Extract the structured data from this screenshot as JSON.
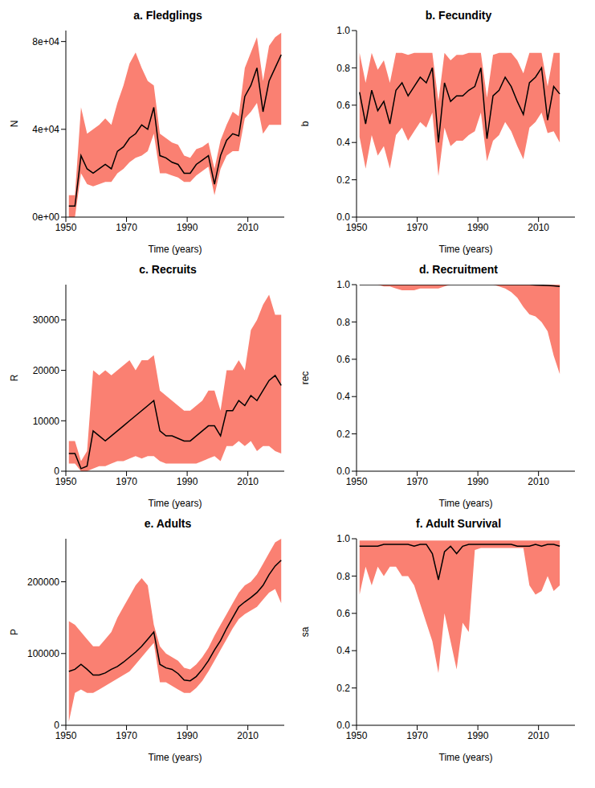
{
  "chart_data": [
    {
      "type": "line",
      "title": "a. Fledglings",
      "x_label": "Time (years)",
      "y_label": "N",
      "x": [
        1951,
        1953,
        1955,
        1957,
        1959,
        1961,
        1963,
        1965,
        1967,
        1969,
        1971,
        1973,
        1975,
        1977,
        1979,
        1981,
        1983,
        1985,
        1987,
        1989,
        1991,
        1993,
        1995,
        1997,
        1999,
        2001,
        2003,
        2005,
        2007,
        2009,
        2011,
        2013,
        2015,
        2017,
        2019,
        2021
      ],
      "xlim": [
        1950,
        2022
      ],
      "xticks": [
        1950,
        1970,
        1990,
        2010
      ],
      "ylim": [
        0,
        85000
      ],
      "yticks": [
        {
          "value": 0,
          "label": "0e+00"
        },
        {
          "value": 40000,
          "label": "4e+04"
        },
        {
          "value": 80000,
          "label": "8e+04"
        }
      ],
      "series": [
        {
          "type": "area",
          "color": "#fa8072",
          "lower": [
            0,
            0,
            20000,
            15000,
            14000,
            15000,
            16000,
            16000,
            20000,
            22000,
            25000,
            27000,
            28000,
            30000,
            38000,
            20000,
            20000,
            19000,
            18000,
            16000,
            16000,
            19000,
            21000,
            23000,
            10000,
            22000,
            28000,
            30000,
            30000,
            45000,
            48000,
            52000,
            38000,
            42000,
            42000,
            42000
          ],
          "upper": [
            10000,
            10000,
            50000,
            38000,
            40000,
            42000,
            45000,
            42000,
            52000,
            60000,
            70000,
            75000,
            68000,
            62000,
            60000,
            38000,
            36000,
            34000,
            33000,
            28000,
            27000,
            31000,
            32000,
            34000,
            22000,
            35000,
            42000,
            48000,
            46000,
            68000,
            75000,
            82000,
            62000,
            78000,
            82000,
            84000
          ]
        },
        {
          "type": "line",
          "color": "#000000",
          "values": [
            5000,
            5000,
            28000,
            22000,
            20000,
            22000,
            24000,
            22000,
            30000,
            32000,
            36000,
            38000,
            42000,
            40000,
            50000,
            28000,
            27000,
            25000,
            24000,
            20000,
            20000,
            24000,
            26000,
            28000,
            15000,
            28000,
            35000,
            38000,
            37000,
            55000,
            60000,
            68000,
            48000,
            62000,
            68000,
            74000
          ]
        }
      ]
    },
    {
      "type": "line",
      "title": "b. Fecundity",
      "x_label": "Time (years)",
      "y_label": "b",
      "x": [
        1951,
        1953,
        1955,
        1957,
        1959,
        1961,
        1963,
        1965,
        1967,
        1969,
        1971,
        1973,
        1975,
        1977,
        1979,
        1981,
        1983,
        1985,
        1987,
        1989,
        1991,
        1993,
        1995,
        1997,
        1999,
        2001,
        2003,
        2005,
        2007,
        2009,
        2011,
        2013,
        2015,
        2017
      ],
      "xlim": [
        1950,
        2022
      ],
      "xticks": [
        1950,
        1970,
        1990,
        2010
      ],
      "ylim": [
        0,
        1
      ],
      "yticks": [
        {
          "value": 0,
          "label": "0.0"
        },
        0.2,
        0.4,
        0.6,
        0.8,
        {
          "value": 1,
          "label": "1.0"
        }
      ],
      "series": [
        {
          "type": "area",
          "color": "#fa8072",
          "lower": [
            0.43,
            0.26,
            0.44,
            0.33,
            0.38,
            0.26,
            0.44,
            0.48,
            0.41,
            0.46,
            0.51,
            0.48,
            0.56,
            0.22,
            0.48,
            0.38,
            0.41,
            0.41,
            0.44,
            0.46,
            0.56,
            0.3,
            0.41,
            0.44,
            0.51,
            0.46,
            0.38,
            0.31,
            0.48,
            0.51,
            0.56,
            0.45,
            0.46,
            0.4
          ],
          "upper": [
            0.88,
            0.72,
            0.88,
            0.79,
            0.84,
            0.72,
            0.88,
            0.88,
            0.87,
            0.88,
            0.88,
            0.88,
            0.88,
            0.62,
            0.88,
            0.84,
            0.87,
            0.87,
            0.88,
            0.88,
            0.88,
            0.64,
            0.87,
            0.88,
            0.88,
            0.88,
            0.84,
            0.77,
            0.88,
            0.88,
            0.88,
            0.7,
            0.88,
            0.88
          ]
        },
        {
          "type": "line",
          "color": "#000000",
          "values": [
            0.67,
            0.5,
            0.68,
            0.57,
            0.62,
            0.5,
            0.68,
            0.72,
            0.65,
            0.7,
            0.75,
            0.72,
            0.8,
            0.4,
            0.72,
            0.62,
            0.65,
            0.65,
            0.68,
            0.7,
            0.8,
            0.42,
            0.65,
            0.68,
            0.75,
            0.7,
            0.62,
            0.55,
            0.72,
            0.75,
            0.8,
            0.52,
            0.7,
            0.66
          ]
        }
      ]
    },
    {
      "type": "line",
      "title": "c. Recruits",
      "x_label": "Time (years)",
      "y_label": "R",
      "x": [
        1951,
        1953,
        1955,
        1957,
        1959,
        1961,
        1963,
        1965,
        1967,
        1969,
        1971,
        1973,
        1975,
        1977,
        1979,
        1981,
        1983,
        1985,
        1987,
        1989,
        1991,
        1993,
        1995,
        1997,
        1999,
        2001,
        2003,
        2005,
        2007,
        2009,
        2011,
        2013,
        2015,
        2017,
        2019,
        2021
      ],
      "xlim": [
        1950,
        2022
      ],
      "xticks": [
        1950,
        1970,
        1990,
        2010
      ],
      "ylim": [
        0,
        37000
      ],
      "yticks": [
        0,
        10000,
        20000,
        30000
      ],
      "series": [
        {
          "type": "area",
          "color": "#fa8072",
          "lower": [
            1500,
            1500,
            0,
            0,
            500,
            1000,
            1000,
            1500,
            2000,
            2000,
            2500,
            3000,
            2500,
            3000,
            3000,
            2000,
            1500,
            1500,
            1500,
            1500,
            1500,
            1500,
            2000,
            2500,
            3000,
            2000,
            5000,
            5000,
            6000,
            5000,
            6000,
            4000,
            5000,
            5000,
            4000,
            3500
          ],
          "upper": [
            6000,
            6000,
            2000,
            4000,
            20000,
            19000,
            20000,
            19000,
            20000,
            21000,
            22000,
            20000,
            22000,
            22000,
            23000,
            16000,
            15000,
            14000,
            13000,
            12000,
            12000,
            13000,
            14000,
            16000,
            16000,
            12000,
            20000,
            20000,
            22000,
            20000,
            28000,
            30000,
            33000,
            35000,
            31000,
            31000
          ]
        },
        {
          "type": "line",
          "color": "#000000",
          "values": [
            3500,
            3500,
            500,
            1000,
            8000,
            7000,
            6000,
            7000,
            8000,
            9000,
            10000,
            11000,
            12000,
            13000,
            14000,
            8000,
            7000,
            7000,
            6500,
            6000,
            6000,
            7000,
            8000,
            9000,
            9000,
            7000,
            12000,
            12000,
            14000,
            13000,
            15000,
            14000,
            16000,
            18000,
            19000,
            17000
          ]
        }
      ]
    },
    {
      "type": "line",
      "title": "d. Recruitment",
      "x_label": "Time (years)",
      "y_label": "rec",
      "x": [
        1951,
        1953,
        1955,
        1957,
        1959,
        1961,
        1963,
        1965,
        1967,
        1969,
        1971,
        1973,
        1975,
        1977,
        1979,
        1981,
        1983,
        1985,
        1987,
        1989,
        1991,
        1993,
        1995,
        1997,
        1999,
        2001,
        2003,
        2005,
        2007,
        2009,
        2011,
        2013,
        2015,
        2017
      ],
      "xlim": [
        1950,
        2022
      ],
      "xticks": [
        1950,
        1970,
        1990,
        2010
      ],
      "ylim": [
        0,
        1
      ],
      "yticks": [
        {
          "value": 0,
          "label": "0.0"
        },
        0.2,
        0.4,
        0.6,
        0.8,
        {
          "value": 1,
          "label": "1.0"
        }
      ],
      "series": [
        {
          "type": "area",
          "color": "#fa8072",
          "lower": [
            1,
            1,
            1,
            1,
            0.99,
            0.99,
            0.98,
            0.97,
            0.97,
            0.97,
            0.98,
            0.98,
            0.98,
            0.98,
            0.99,
            1,
            1,
            1,
            1,
            1,
            1,
            1,
            1,
            0.99,
            0.98,
            0.96,
            0.93,
            0.88,
            0.84,
            0.83,
            0.8,
            0.75,
            0.62,
            0.52
          ],
          "upper": [
            1,
            1,
            1,
            1,
            1,
            1,
            1,
            1,
            1,
            1,
            1,
            1,
            1,
            1,
            1,
            1,
            1,
            1,
            1,
            1,
            1,
            1,
            1,
            1,
            1,
            1,
            1,
            1,
            1,
            1,
            1,
            1,
            1,
            1
          ]
        },
        {
          "type": "line",
          "color": "#000000",
          "values": [
            1,
            1,
            1,
            1,
            1,
            1,
            1,
            1,
            1,
            1,
            1,
            1,
            1,
            1,
            1,
            1,
            1,
            1,
            1,
            1,
            1,
            1,
            1,
            1,
            1,
            1,
            1,
            1,
            1,
            0.998,
            0.997,
            0.996,
            0.994,
            0.99
          ]
        }
      ]
    },
    {
      "type": "line",
      "title": "e. Adults",
      "x_label": "Time (years)",
      "y_label": "P",
      "x": [
        1951,
        1953,
        1955,
        1957,
        1959,
        1961,
        1963,
        1965,
        1967,
        1969,
        1971,
        1973,
        1975,
        1977,
        1979,
        1981,
        1983,
        1985,
        1987,
        1989,
        1991,
        1993,
        1995,
        1997,
        1999,
        2001,
        2003,
        2005,
        2007,
        2009,
        2011,
        2013,
        2015,
        2017,
        2019,
        2021
      ],
      "xlim": [
        1950,
        2022
      ],
      "xticks": [
        1950,
        1970,
        1990,
        2010
      ],
      "ylim": [
        0,
        260000
      ],
      "yticks": [
        0,
        100000,
        200000
      ],
      "series": [
        {
          "type": "area",
          "color": "#fa8072",
          "lower": [
            5000,
            45000,
            50000,
            45000,
            45000,
            50000,
            55000,
            60000,
            65000,
            70000,
            75000,
            85000,
            95000,
            105000,
            115000,
            60000,
            60000,
            55000,
            50000,
            45000,
            45000,
            52000,
            62000,
            75000,
            90000,
            105000,
            120000,
            135000,
            148000,
            155000,
            160000,
            165000,
            175000,
            185000,
            190000,
            170000
          ],
          "upper": [
            145000,
            140000,
            130000,
            120000,
            110000,
            110000,
            120000,
            130000,
            150000,
            165000,
            180000,
            195000,
            205000,
            195000,
            140000,
            110000,
            100000,
            95000,
            90000,
            80000,
            78000,
            85000,
            95000,
            108000,
            125000,
            140000,
            155000,
            170000,
            185000,
            195000,
            200000,
            210000,
            225000,
            240000,
            255000,
            260000
          ]
        },
        {
          "type": "line",
          "color": "#000000",
          "values": [
            75000,
            78000,
            85000,
            78000,
            70000,
            70000,
            73000,
            78000,
            82000,
            88000,
            95000,
            102000,
            110000,
            120000,
            130000,
            85000,
            80000,
            78000,
            72000,
            63000,
            62000,
            68000,
            78000,
            90000,
            105000,
            118000,
            135000,
            150000,
            165000,
            172000,
            178000,
            185000,
            195000,
            210000,
            222000,
            230000
          ]
        }
      ]
    },
    {
      "type": "line",
      "title": "f. Adult Survival",
      "x_label": "Time (years)",
      "y_label": "sa",
      "x": [
        1951,
        1953,
        1955,
        1957,
        1959,
        1961,
        1963,
        1965,
        1967,
        1969,
        1971,
        1973,
        1975,
        1977,
        1979,
        1981,
        1983,
        1985,
        1987,
        1989,
        1991,
        1993,
        1995,
        1997,
        1999,
        2001,
        2003,
        2005,
        2007,
        2009,
        2011,
        2013,
        2015,
        2017
      ],
      "xlim": [
        1950,
        2022
      ],
      "xticks": [
        1950,
        1970,
        1990,
        2010
      ],
      "ylim": [
        0,
        1
      ],
      "yticks": [
        {
          "value": 0,
          "label": "0.0"
        },
        0.2,
        0.4,
        0.6,
        0.8,
        {
          "value": 1,
          "label": "1.0"
        }
      ],
      "series": [
        {
          "type": "area",
          "color": "#fa8072",
          "lower": [
            0.7,
            0.85,
            0.75,
            0.85,
            0.8,
            0.85,
            0.85,
            0.8,
            0.8,
            0.75,
            0.65,
            0.55,
            0.45,
            0.28,
            0.6,
            0.45,
            0.3,
            0.55,
            0.5,
            0.94,
            0.95,
            0.95,
            0.95,
            0.95,
            0.95,
            0.95,
            0.95,
            0.95,
            0.75,
            0.7,
            0.72,
            0.8,
            0.72,
            0.75
          ],
          "upper": [
            0.99,
            0.99,
            0.99,
            0.99,
            0.99,
            0.99,
            0.99,
            0.99,
            0.99,
            0.99,
            0.99,
            0.99,
            0.99,
            0.99,
            0.99,
            0.99,
            0.99,
            0.99,
            0.99,
            0.99,
            0.99,
            0.99,
            0.99,
            0.99,
            0.99,
            0.99,
            0.99,
            0.99,
            0.99,
            0.99,
            0.99,
            0.99,
            0.99,
            0.99
          ]
        },
        {
          "type": "line",
          "color": "#000000",
          "values": [
            0.96,
            0.96,
            0.96,
            0.96,
            0.97,
            0.97,
            0.97,
            0.97,
            0.97,
            0.96,
            0.97,
            0.97,
            0.92,
            0.78,
            0.93,
            0.96,
            0.92,
            0.96,
            0.97,
            0.97,
            0.97,
            0.97,
            0.97,
            0.97,
            0.97,
            0.97,
            0.96,
            0.96,
            0.96,
            0.97,
            0.96,
            0.97,
            0.97,
            0.96
          ]
        }
      ]
    }
  ]
}
